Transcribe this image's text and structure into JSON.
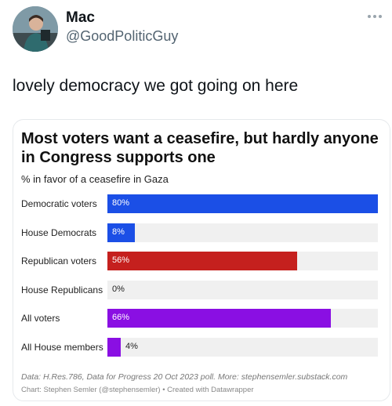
{
  "post": {
    "display_name": "Mac",
    "handle": "@GoodPoliticGuy",
    "text": "lovely democracy we got going on here"
  },
  "chart": {
    "title": "Most voters want a ceasefire, but hardly anyone in Congress supports one",
    "subtitle": "% in favor of a ceasefire in Gaza",
    "source": "Data: H.Res.786, Data for Progress 20 Oct 2023 poll. More: stephensemler.substack.com",
    "credit": "Chart: Stephen Semler (@stephensemler) • Created with Datawrapper"
  },
  "chart_data": {
    "type": "bar",
    "orientation": "horizontal",
    "title": "Most voters want a ceasefire, but hardly anyone in Congress supports one",
    "subtitle": "% in favor of a ceasefire in Gaza",
    "xlim": [
      0,
      80
    ],
    "grid": false,
    "categories": [
      "Democratic voters",
      "House Democrats",
      "Republican voters",
      "House Republicans",
      "All voters",
      "All House members"
    ],
    "values": [
      80,
      8,
      56,
      0,
      66,
      4
    ],
    "value_labels": [
      "80%",
      "8%",
      "56%",
      "0%",
      "66%",
      "4%"
    ],
    "colors": [
      "#1b4fe6",
      "#1b4fe6",
      "#c5201e",
      "#c5201e",
      "#8a0fe3",
      "#8a0fe3"
    ],
    "track_color": "#f0f0f0"
  }
}
